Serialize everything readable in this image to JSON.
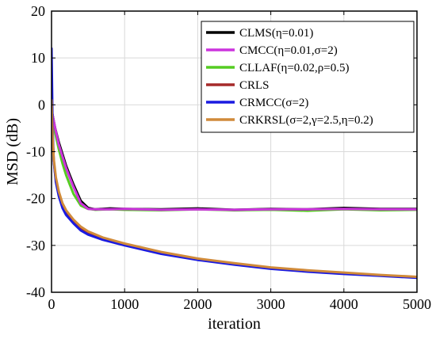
{
  "chart_data": {
    "type": "line",
    "title": "",
    "xlabel": "iteration",
    "ylabel": "MSD (dB)",
    "xlim": [
      0,
      5000
    ],
    "ylim": [
      -40,
      20
    ],
    "xticks": [
      "0",
      "1000",
      "2000",
      "3000",
      "4000",
      "5000"
    ],
    "yticks": [
      "20",
      "10",
      "0",
      "-10",
      "-20",
      "-30",
      "-40"
    ],
    "grid": true,
    "legend_position": "top-right",
    "series": [
      {
        "name": "CLMS(η=0.01)",
        "color": "#000000",
        "x": [
          0,
          25,
          50,
          100,
          150,
          200,
          250,
          300,
          400,
          500,
          600,
          800,
          1000,
          1500,
          2000,
          2500,
          3000,
          3500,
          4000,
          4500,
          5000
        ],
        "y": [
          -1,
          -3,
          -5,
          -8,
          -10.5,
          -13,
          -15,
          -17,
          -20.5,
          -22,
          -22.3,
          -22.1,
          -22.2,
          -22.3,
          -22.1,
          -22.4,
          -22.2,
          -22.3,
          -22.0,
          -22.2,
          -22.2
        ]
      },
      {
        "name": "CMCC(η=0.01,σ=2)",
        "color": "#cc33dd",
        "x": [
          0,
          25,
          50,
          100,
          150,
          200,
          250,
          300,
          400,
          500,
          600,
          800,
          1000,
          1500,
          2000,
          2500,
          3000,
          3500,
          4000,
          4500,
          5000
        ],
        "y": [
          -1,
          -3,
          -5,
          -8.5,
          -11,
          -13.5,
          -15.5,
          -17.5,
          -21,
          -22.2,
          -22.3,
          -22.3,
          -22.2,
          -22.4,
          -22.3,
          -22.4,
          -22.3,
          -22.3,
          -22.2,
          -22.3,
          -22.3
        ]
      },
      {
        "name": "CLLAF(η=0.02,ρ=0.5)",
        "color": "#55cc22",
        "x": [
          0,
          25,
          50,
          100,
          150,
          200,
          250,
          300,
          400,
          500,
          600,
          800,
          1000,
          1500,
          2000,
          2500,
          3000,
          3500,
          4000,
          4500,
          5000
        ],
        "y": [
          -1,
          -4,
          -6,
          -9.5,
          -12.5,
          -15,
          -17,
          -19,
          -21.5,
          -22.2,
          -22.4,
          -22.3,
          -22.4,
          -22.5,
          -22.3,
          -22.5,
          -22.4,
          -22.6,
          -22.3,
          -22.5,
          -22.4
        ]
      },
      {
        "name": "CRLS",
        "color": "#a52a2a",
        "x": [
          0,
          15,
          30,
          60,
          100,
          150,
          200,
          300,
          400,
          500,
          700,
          1000,
          1500,
          2000,
          2500,
          3000,
          3500,
          4000,
          4500,
          5000
        ],
        "y": [
          2,
          -7,
          -12,
          -16,
          -19,
          -21.5,
          -23,
          -25,
          -26.5,
          -27.3,
          -28.5,
          -29.8,
          -31.6,
          -33,
          -34,
          -34.9,
          -35.5,
          -36,
          -36.4,
          -36.8
        ]
      },
      {
        "name": "CRMCC(σ=2)",
        "color": "#1a1ae0",
        "x": [
          0,
          15,
          30,
          60,
          100,
          150,
          200,
          300,
          400,
          500,
          700,
          1000,
          1500,
          2000,
          2500,
          3000,
          3500,
          4000,
          4500,
          5000
        ],
        "y": [
          12,
          -5,
          -12,
          -16.5,
          -19.5,
          -22,
          -23.5,
          -25.3,
          -26.8,
          -27.7,
          -28.8,
          -30,
          -31.8,
          -33.1,
          -34.1,
          -35,
          -35.6,
          -36.1,
          -36.5,
          -36.9
        ]
      },
      {
        "name": "CRKRSL(σ=2,γ=2.5,η=0.2)",
        "color": "#d08a3a",
        "x": [
          0,
          15,
          30,
          60,
          100,
          150,
          200,
          300,
          400,
          500,
          700,
          1000,
          1500,
          2000,
          2500,
          3000,
          3500,
          4000,
          4500,
          5000
        ],
        "y": [
          1,
          -7,
          -11.5,
          -15.5,
          -18.5,
          -21,
          -22.5,
          -24.5,
          -26,
          -27,
          -28.3,
          -29.6,
          -31.4,
          -32.8,
          -33.8,
          -34.7,
          -35.3,
          -35.8,
          -36.3,
          -36.7
        ]
      }
    ]
  }
}
